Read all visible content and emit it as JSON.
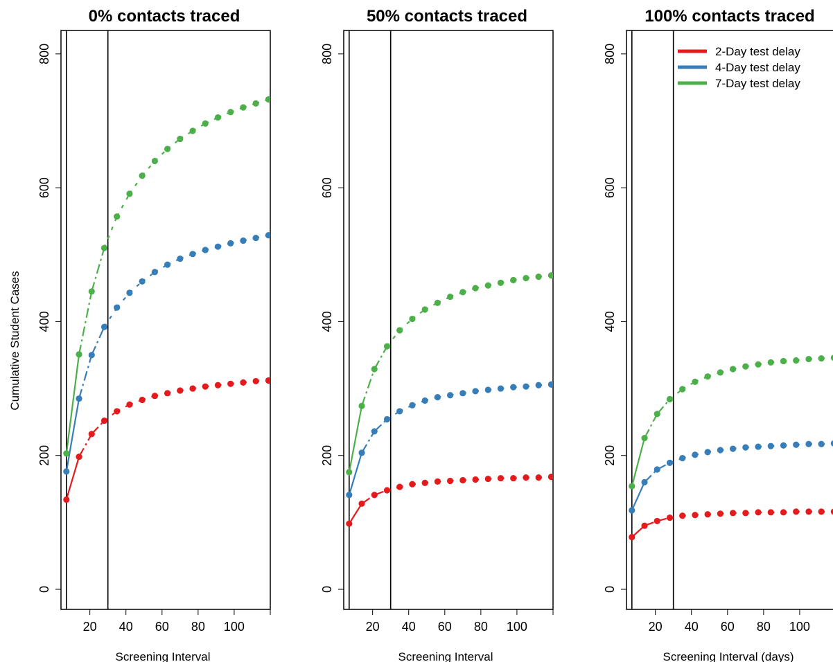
{
  "figure": {
    "legend_position": "top-right"
  },
  "chart_data": [
    {
      "type": "scatter",
      "title": "0% contacts traced",
      "xlabel": "Screening Interval",
      "ylabel": "Cumulative Student Cases",
      "xlim": [
        4,
        120
      ],
      "ylim": [
        -30,
        835
      ],
      "xticks": [
        20,
        40,
        60,
        80,
        100
      ],
      "yticks": [
        0,
        200,
        400,
        600,
        800
      ],
      "vlines": [
        7,
        30
      ],
      "grid": false,
      "x": [
        7,
        14,
        21,
        28,
        35,
        42,
        49,
        56,
        63,
        70,
        77,
        84,
        91,
        98,
        105,
        112,
        119
      ],
      "series": [
        {
          "label": "2-Day test delay",
          "color": "#e41a1c",
          "values": [
            134,
            198,
            232,
            252,
            266,
            276,
            283,
            289,
            293,
            297,
            300,
            303,
            305,
            307,
            309,
            311,
            312
          ]
        },
        {
          "label": "4-Day test delay",
          "color": "#377eb8",
          "values": [
            176,
            285,
            350,
            392,
            421,
            443,
            460,
            474,
            485,
            494,
            501,
            507,
            512,
            517,
            521,
            525,
            529
          ]
        },
        {
          "label": "7-Day test delay",
          "color": "#4daf4a",
          "values": [
            203,
            351,
            445,
            510,
            557,
            591,
            618,
            640,
            658,
            673,
            685,
            696,
            705,
            713,
            720,
            726,
            732
          ]
        }
      ]
    },
    {
      "type": "scatter",
      "title": "50% contacts traced",
      "xlabel": "Screening Interval",
      "ylabel": "",
      "xlim": [
        4,
        120
      ],
      "ylim": [
        -30,
        835
      ],
      "xticks": [
        20,
        40,
        60,
        80,
        100
      ],
      "yticks": [
        0,
        200,
        400,
        600,
        800
      ],
      "vlines": [
        7,
        30
      ],
      "grid": false,
      "x": [
        7,
        14,
        21,
        28,
        35,
        42,
        49,
        56,
        63,
        70,
        77,
        84,
        91,
        98,
        105,
        112,
        119
      ],
      "series": [
        {
          "label": "2-Day test delay",
          "color": "#e41a1c",
          "values": [
            98,
            128,
            141,
            148,
            153,
            157,
            159,
            161,
            162,
            163,
            164,
            165,
            166,
            166,
            167,
            167,
            168
          ]
        },
        {
          "label": "4-Day test delay",
          "color": "#377eb8",
          "values": [
            141,
            204,
            236,
            254,
            266,
            275,
            282,
            287,
            290,
            293,
            296,
            298,
            300,
            302,
            303,
            305,
            306
          ]
        },
        {
          "label": "7-Day test delay",
          "color": "#4daf4a",
          "values": [
            175,
            274,
            329,
            363,
            387,
            404,
            418,
            428,
            437,
            444,
            450,
            454,
            458,
            462,
            465,
            467,
            469
          ]
        }
      ]
    },
    {
      "type": "scatter",
      "title": "100% contacts traced",
      "xlabel": "Screening Interval (days)",
      "ylabel": "",
      "xlim": [
        4,
        120
      ],
      "ylim": [
        -30,
        835
      ],
      "xticks": [
        20,
        40,
        60,
        80,
        100
      ],
      "yticks": [
        0,
        200,
        400,
        600,
        800
      ],
      "vlines": [
        7,
        30
      ],
      "grid": false,
      "legend": [
        "2-Day test delay",
        "4-Day test delay",
        "7-Day test delay"
      ],
      "x": [
        7,
        14,
        21,
        28,
        35,
        42,
        49,
        56,
        63,
        70,
        77,
        84,
        91,
        98,
        105,
        112,
        119
      ],
      "series": [
        {
          "label": "2-Day test delay",
          "color": "#e41a1c",
          "values": [
            78,
            95,
            102,
            107,
            110,
            111,
            112,
            113,
            114,
            114,
            115,
            115,
            115,
            116,
            116,
            116,
            116
          ]
        },
        {
          "label": "4-Day test delay",
          "color": "#377eb8",
          "values": [
            118,
            160,
            179,
            189,
            196,
            201,
            205,
            208,
            210,
            212,
            213,
            214,
            215,
            216,
            217,
            217,
            218
          ]
        },
        {
          "label": "7-Day test delay",
          "color": "#4daf4a",
          "values": [
            154,
            226,
            262,
            284,
            299,
            310,
            318,
            324,
            329,
            333,
            336,
            339,
            341,
            342,
            344,
            345,
            346
          ]
        }
      ]
    }
  ]
}
